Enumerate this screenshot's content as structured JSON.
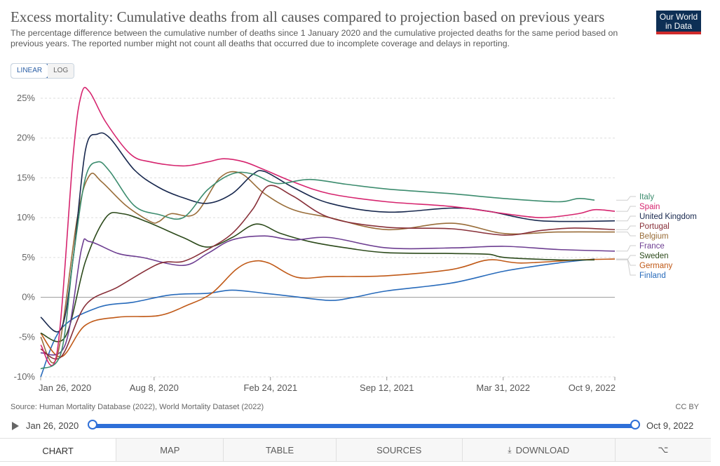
{
  "header": {
    "title": "Excess mortality: Cumulative deaths from all causes compared to projection based on previous years",
    "subtitle": "The percentage difference between the cumulative number of deaths since 1 January 2020 and the cumulative projected deaths for the same period based on previous years. The reported number might not count all deaths that occurred due to incomplete coverage and delays in reporting.",
    "logo_line1": "Our World",
    "logo_line2": "in Data"
  },
  "scale_toggle": {
    "linear": "LINEAR",
    "log": "LOG"
  },
  "footer": {
    "source": "Source: Human Mortality Database (2022), World Mortality Dataset (2022)",
    "license": "CC BY"
  },
  "timeline": {
    "start": "Jan 26, 2020",
    "end": "Oct 9, 2022"
  },
  "tabs": {
    "chart": "CHART",
    "map": "MAP",
    "table": "TABLE",
    "sources": "SOURCES",
    "download": "DOWNLOAD"
  },
  "icons": {
    "play": "play-icon",
    "download": "download-icon",
    "share": "share-icon"
  },
  "chart_data": {
    "type": "line",
    "ylim": [
      -10,
      25
    ],
    "y_ticks": [
      "-10%",
      "-5%",
      "0%",
      "5%",
      "10%",
      "15%",
      "20%",
      "25%"
    ],
    "x_ticks": [
      "Jan 26, 2020",
      "Aug 8, 2020",
      "Feb 24, 2021",
      "Sep 12, 2021",
      "Mar 31, 2022",
      "Oct 9, 2022"
    ],
    "x_range": [
      "2020-01-26",
      "2022-10-09"
    ],
    "grid": true,
    "legend": "right",
    "series": [
      {
        "name": "Italy",
        "color": "#3c8c6e",
        "points": [
          [
            "2020-01-26",
            -9
          ],
          [
            "2020-03-01",
            -7
          ],
          [
            "2020-03-22",
            5
          ],
          [
            "2020-04-12",
            15
          ],
          [
            "2020-05-03",
            17
          ],
          [
            "2020-05-24",
            15.8
          ],
          [
            "2020-07-05",
            11.5
          ],
          [
            "2020-08-16",
            10.4
          ],
          [
            "2020-09-27",
            10
          ],
          [
            "2020-11-08",
            13.5
          ],
          [
            "2020-12-20",
            15.5
          ],
          [
            "2021-01-24",
            15.5
          ],
          [
            "2021-03-07",
            14.3
          ],
          [
            "2021-05-02",
            14.8
          ],
          [
            "2021-07-04",
            14.2
          ],
          [
            "2021-09-12",
            13.6
          ],
          [
            "2022-01-02",
            13
          ],
          [
            "2022-04-03",
            12.4
          ],
          [
            "2022-07-03",
            12
          ],
          [
            "2022-08-07",
            12.4
          ],
          [
            "2022-09-04",
            12.2
          ]
        ]
      },
      {
        "name": "Spain",
        "color": "#d6246e",
        "points": [
          [
            "2020-01-26",
            -6
          ],
          [
            "2020-02-23",
            -7
          ],
          [
            "2020-03-22",
            18
          ],
          [
            "2020-04-05",
            25.5
          ],
          [
            "2020-04-19",
            25.8
          ],
          [
            "2020-05-17",
            22
          ],
          [
            "2020-06-28",
            18
          ],
          [
            "2020-08-02",
            17
          ],
          [
            "2020-09-27",
            16.5
          ],
          [
            "2020-11-08",
            17
          ],
          [
            "2020-12-06",
            17.4
          ],
          [
            "2021-01-10",
            17
          ],
          [
            "2021-02-14",
            16
          ],
          [
            "2021-04-04",
            14.5
          ],
          [
            "2021-06-06",
            13
          ],
          [
            "2021-09-12",
            12
          ],
          [
            "2022-01-02",
            11.4
          ],
          [
            "2022-04-03",
            10.5
          ],
          [
            "2022-06-05",
            10
          ],
          [
            "2022-08-07",
            10.5
          ],
          [
            "2022-09-04",
            11
          ],
          [
            "2022-10-09",
            10.8
          ]
        ]
      },
      {
        "name": "United Kingdom",
        "color": "#18284e",
        "points": [
          [
            "2020-01-26",
            -2.5
          ],
          [
            "2020-03-01",
            -4
          ],
          [
            "2020-03-22",
            5
          ],
          [
            "2020-04-12",
            18.5
          ],
          [
            "2020-05-03",
            20.5
          ],
          [
            "2020-05-24",
            20
          ],
          [
            "2020-07-05",
            16
          ],
          [
            "2020-08-16",
            13.8
          ],
          [
            "2020-09-27",
            12.5
          ],
          [
            "2020-11-08",
            11.8
          ],
          [
            "2020-12-20",
            13
          ],
          [
            "2021-01-24",
            15.4
          ],
          [
            "2021-02-14",
            15.8
          ],
          [
            "2021-04-04",
            13.8
          ],
          [
            "2021-06-06",
            11.8
          ],
          [
            "2021-09-12",
            10.7
          ],
          [
            "2022-01-02",
            11.2
          ],
          [
            "2022-03-06",
            10.8
          ],
          [
            "2022-06-05",
            9.6
          ],
          [
            "2022-10-09",
            9.6
          ]
        ]
      },
      {
        "name": "Portugal",
        "color": "#883039",
        "points": [
          [
            "2020-01-26",
            -6.5
          ],
          [
            "2020-03-01",
            -7.5
          ],
          [
            "2020-04-12",
            -1
          ],
          [
            "2020-06-07",
            1.3
          ],
          [
            "2020-08-16",
            4.2
          ],
          [
            "2020-09-27",
            4.5
          ],
          [
            "2020-11-08",
            6
          ],
          [
            "2020-12-20",
            8
          ],
          [
            "2021-01-24",
            11
          ],
          [
            "2021-02-21",
            14
          ],
          [
            "2021-04-04",
            12.7
          ],
          [
            "2021-06-06",
            10
          ],
          [
            "2021-09-12",
            8.8
          ],
          [
            "2022-01-02",
            8.6
          ],
          [
            "2022-04-03",
            7.8
          ],
          [
            "2022-06-05",
            8.4
          ],
          [
            "2022-07-31",
            8.7
          ],
          [
            "2022-10-09",
            8.5
          ]
        ]
      },
      {
        "name": "Belgium",
        "color": "#996d39",
        "points": [
          [
            "2020-01-26",
            -5
          ],
          [
            "2020-02-23",
            -7.5
          ],
          [
            "2020-03-29",
            10
          ],
          [
            "2020-04-19",
            15.3
          ],
          [
            "2020-05-10",
            14.5
          ],
          [
            "2020-06-21",
            11.5
          ],
          [
            "2020-08-02",
            9.5
          ],
          [
            "2020-08-16",
            9.5
          ],
          [
            "2020-09-06",
            10.5
          ],
          [
            "2020-10-18",
            10.5
          ],
          [
            "2020-11-29",
            15
          ],
          [
            "2021-01-03",
            15.6
          ],
          [
            "2021-02-14",
            13
          ],
          [
            "2021-04-04",
            11
          ],
          [
            "2021-06-06",
            10
          ],
          [
            "2021-09-12",
            8.5
          ],
          [
            "2022-01-02",
            9.3
          ],
          [
            "2022-04-03",
            8
          ],
          [
            "2022-07-03",
            8.2
          ],
          [
            "2022-10-09",
            8.2
          ]
        ]
      },
      {
        "name": "France",
        "color": "#6d3e91",
        "points": [
          [
            "2020-01-26",
            -7
          ],
          [
            "2020-03-08",
            -6
          ],
          [
            "2020-04-05",
            6
          ],
          [
            "2020-04-19",
            7
          ],
          [
            "2020-06-07",
            5.5
          ],
          [
            "2020-07-19",
            5
          ],
          [
            "2020-09-27",
            4
          ],
          [
            "2020-11-08",
            5.5
          ],
          [
            "2020-12-20",
            7.2
          ],
          [
            "2021-02-14",
            7.7
          ],
          [
            "2021-04-04",
            7.2
          ],
          [
            "2021-06-06",
            7.5
          ],
          [
            "2021-09-12",
            6.2
          ],
          [
            "2022-01-02",
            6.2
          ],
          [
            "2022-04-03",
            6.4
          ],
          [
            "2022-07-03",
            6
          ],
          [
            "2022-10-09",
            5.8
          ]
        ]
      },
      {
        "name": "Sweden",
        "color": "#2c4a1b",
        "points": [
          [
            "2020-01-26",
            -4.5
          ],
          [
            "2020-03-08",
            -5
          ],
          [
            "2020-04-12",
            4.5
          ],
          [
            "2020-05-17",
            10
          ],
          [
            "2020-06-14",
            10.5
          ],
          [
            "2020-07-26",
            9.5
          ],
          [
            "2020-09-27",
            7.5
          ],
          [
            "2020-11-08",
            6.3
          ],
          [
            "2020-12-20",
            7.5
          ],
          [
            "2021-01-31",
            9.2
          ],
          [
            "2021-03-14",
            8
          ],
          [
            "2021-05-02",
            7
          ],
          [
            "2021-07-04",
            6.2
          ],
          [
            "2021-09-12",
            5.6
          ],
          [
            "2022-01-02",
            5.5
          ],
          [
            "2022-03-06",
            5.4
          ],
          [
            "2022-04-03",
            5
          ],
          [
            "2022-07-03",
            4.7
          ],
          [
            "2022-09-04",
            4.7
          ]
        ]
      },
      {
        "name": "Germany",
        "color": "#c05917",
        "points": [
          [
            "2020-01-26",
            -4.5
          ],
          [
            "2020-03-01",
            -7.5
          ],
          [
            "2020-04-12",
            -3.5
          ],
          [
            "2020-06-07",
            -2.5
          ],
          [
            "2020-08-16",
            -2.3
          ],
          [
            "2020-10-04",
            -1
          ],
          [
            "2020-11-15",
            0.5
          ],
          [
            "2020-12-27",
            3.5
          ],
          [
            "2021-01-24",
            4.5
          ],
          [
            "2021-02-21",
            4.3
          ],
          [
            "2021-04-11",
            2.5
          ],
          [
            "2021-06-06",
            2.6
          ],
          [
            "2021-09-12",
            2.7
          ],
          [
            "2022-01-02",
            3.5
          ],
          [
            "2022-03-06",
            4.7
          ],
          [
            "2022-05-01",
            4.3
          ],
          [
            "2022-08-07",
            4.7
          ],
          [
            "2022-10-09",
            4.8
          ]
        ]
      },
      {
        "name": "Finland",
        "color": "#286bbb",
        "points": [
          [
            "2020-01-26",
            -10
          ],
          [
            "2020-03-01",
            -4
          ],
          [
            "2020-05-03",
            -1.3
          ],
          [
            "2020-07-05",
            -0.6
          ],
          [
            "2020-09-06",
            0.3
          ],
          [
            "2020-11-08",
            0.5
          ],
          [
            "2020-12-20",
            0.9
          ],
          [
            "2021-02-14",
            0.5
          ],
          [
            "2021-04-04",
            0.1
          ],
          [
            "2021-06-06",
            -0.4
          ],
          [
            "2021-07-18",
            0
          ],
          [
            "2021-09-12",
            0.8
          ],
          [
            "2022-01-02",
            1.8
          ],
          [
            "2022-04-03",
            3.3
          ],
          [
            "2022-07-03",
            4.3
          ],
          [
            "2022-09-04",
            4.8
          ]
        ]
      }
    ]
  }
}
